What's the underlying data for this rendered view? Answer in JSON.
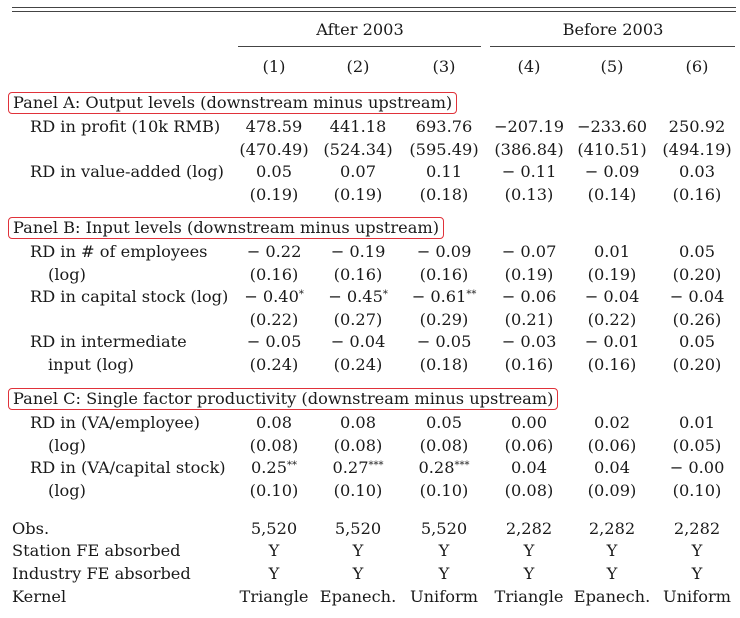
{
  "header": {
    "groups": [
      {
        "label": "After 2003"
      },
      {
        "label": "Before 2003"
      }
    ],
    "columns": [
      "(1)",
      "(2)",
      "(3)",
      "(4)",
      "(5)",
      "(6)"
    ]
  },
  "panels": [
    {
      "title": "Panel A: Output levels (downstream minus upstream)",
      "rows": [
        {
          "label1": "RD in profit (10k RMB)",
          "label2": "",
          "coef": [
            "478.59",
            "441.18",
            "693.76",
            "−207.19",
            "−233.60",
            "250.92"
          ],
          "stars": [
            "",
            "",
            "",
            "",
            "",
            ""
          ],
          "se": [
            "(470.49)",
            "(524.34)",
            "(595.49)",
            "(386.84)",
            "(410.51)",
            "(494.19)"
          ]
        },
        {
          "label1": "RD in value-added (log)",
          "label2": "",
          "coef": [
            "0.05",
            "0.07",
            "0.11",
            "− 0.11",
            "− 0.09",
            "0.03"
          ],
          "stars": [
            "",
            "",
            "",
            "",
            "",
            ""
          ],
          "se": [
            "(0.19)",
            "(0.19)",
            "(0.18)",
            "(0.13)",
            "(0.14)",
            "(0.16)"
          ]
        }
      ]
    },
    {
      "title": "Panel B: Input levels (downstream minus upstream)",
      "rows": [
        {
          "label1": "RD in # of employees",
          "label2": "(log)",
          "coef": [
            "− 0.22",
            "− 0.19",
            "− 0.09",
            "− 0.07",
            "0.01",
            "0.05"
          ],
          "stars": [
            "",
            "",
            "",
            "",
            "",
            ""
          ],
          "se": [
            "(0.16)",
            "(0.16)",
            "(0.16)",
            "(0.19)",
            "(0.19)",
            "(0.20)"
          ]
        },
        {
          "label1": "RD in capital stock (log)",
          "label2": "",
          "coef": [
            "− 0.40",
            "− 0.45",
            "− 0.61",
            "− 0.06",
            "− 0.04",
            "− 0.04"
          ],
          "stars": [
            "*",
            "*",
            "**",
            "",
            "",
            ""
          ],
          "se": [
            "(0.22)",
            "(0.27)",
            "(0.29)",
            "(0.21)",
            "(0.22)",
            "(0.26)"
          ]
        },
        {
          "label1": "RD in intermediate",
          "label2": "input (log)",
          "coef": [
            "− 0.05",
            "− 0.04",
            "− 0.05",
            "− 0.03",
            "− 0.01",
            "0.05"
          ],
          "stars": [
            "",
            "",
            "",
            "",
            "",
            ""
          ],
          "se": [
            "(0.24)",
            "(0.24)",
            "(0.18)",
            "(0.16)",
            "(0.16)",
            "(0.20)"
          ]
        }
      ]
    },
    {
      "title": "Panel C: Single factor productivity (downstream minus upstream)",
      "rows": [
        {
          "label1": "RD in (VA/employee)",
          "label2": "(log)",
          "coef": [
            "0.08",
            "0.08",
            "0.05",
            "0.00",
            "0.02",
            "0.01"
          ],
          "stars": [
            "",
            "",
            "",
            "",
            "",
            ""
          ],
          "se": [
            "(0.08)",
            "(0.08)",
            "(0.08)",
            "(0.06)",
            "(0.06)",
            "(0.05)"
          ]
        },
        {
          "label1": "RD in (VA/capital stock)",
          "label2": "(log)",
          "coef": [
            "0.25",
            "0.27",
            "0.28",
            "0.04",
            "0.04",
            "− 0.00"
          ],
          "stars": [
            "**",
            "***",
            "***",
            "",
            "",
            ""
          ],
          "se": [
            "(0.10)",
            "(0.10)",
            "(0.10)",
            "(0.08)",
            "(0.09)",
            "(0.10)"
          ]
        }
      ]
    }
  ],
  "footer": [
    {
      "label": "Obs.",
      "values": [
        "5,520",
        "5,520",
        "5,520",
        "2,282",
        "2,282",
        "2,282"
      ]
    },
    {
      "label": "Station FE absorbed",
      "values": [
        "Y",
        "Y",
        "Y",
        "Y",
        "Y",
        "Y"
      ]
    },
    {
      "label": "Industry FE absorbed",
      "values": [
        "Y",
        "Y",
        "Y",
        "Y",
        "Y",
        "Y"
      ]
    },
    {
      "label": "Kernel",
      "values": [
        "Triangle",
        "Epanech.",
        "Uniform",
        "Triangle",
        "Epanech.",
        "Uniform"
      ]
    }
  ],
  "colors": {
    "highlight": "#e0323a",
    "text": "#1a1a1a"
  }
}
